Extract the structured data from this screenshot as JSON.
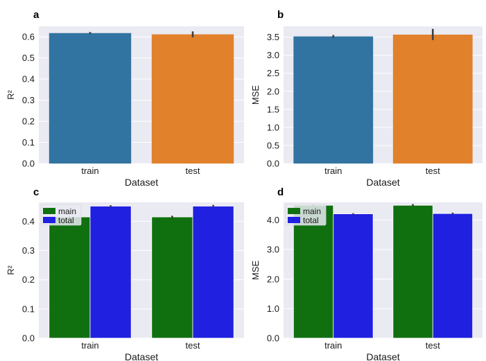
{
  "chart_data": [
    {
      "panel": "a",
      "type": "bar",
      "xlabel": "Dataset",
      "ylabel": "R²",
      "categories": [
        "train",
        "test"
      ],
      "values": [
        0.618,
        0.612
      ],
      "errors": [
        [
          0.613,
          0.623
        ],
        [
          0.598,
          0.626
        ]
      ],
      "bar_colors": [
        "#3274a1",
        "#e1812c"
      ],
      "ylim": [
        0,
        0.65
      ],
      "yticks": [
        0.0,
        0.1,
        0.2,
        0.3,
        0.4,
        0.5,
        0.6
      ],
      "ytick_labels": [
        "0.0",
        "0.1",
        "0.2",
        "0.3",
        "0.4",
        "0.5",
        "0.6"
      ],
      "grid": true
    },
    {
      "panel": "b",
      "type": "bar",
      "xlabel": "Dataset",
      "ylabel": "MSE",
      "categories": [
        "train",
        "test"
      ],
      "values": [
        3.52,
        3.57
      ],
      "errors": [
        [
          3.48,
          3.56
        ],
        [
          3.42,
          3.73
        ]
      ],
      "bar_colors": [
        "#3274a1",
        "#e1812c"
      ],
      "ylim": [
        0,
        3.8
      ],
      "yticks": [
        0.0,
        0.5,
        1.0,
        1.5,
        2.0,
        2.5,
        3.0,
        3.5
      ],
      "ytick_labels": [
        "0.0",
        "0.5",
        "1.0",
        "1.5",
        "2.0",
        "2.5",
        "3.0",
        "3.5"
      ],
      "grid": true
    },
    {
      "panel": "c",
      "type": "bar",
      "xlabel": "Dataset",
      "ylabel": "R²",
      "categories": [
        "train",
        "test"
      ],
      "series": [
        {
          "name": "main",
          "color": "#107010",
          "values": [
            0.415,
            0.415
          ],
          "errors": [
            [
              0.413,
              0.417
            ],
            [
              0.411,
              0.419
            ]
          ]
        },
        {
          "name": "total",
          "color": "#2020e0",
          "values": [
            0.452,
            0.452
          ],
          "errors": [
            [
              0.449,
              0.455
            ],
            [
              0.449,
              0.456
            ]
          ]
        }
      ],
      "ylim": [
        0,
        0.465
      ],
      "yticks": [
        0.0,
        0.1,
        0.2,
        0.3,
        0.4
      ],
      "ytick_labels": [
        "0.0",
        "0.1",
        "0.2",
        "0.3",
        "0.4"
      ],
      "legend": "top-left",
      "grid": true
    },
    {
      "panel": "d",
      "type": "bar",
      "xlabel": "Dataset",
      "ylabel": "MSE",
      "categories": [
        "train",
        "test"
      ],
      "series": [
        {
          "name": "main",
          "color": "#107010",
          "values": [
            4.5,
            4.5
          ],
          "errors": [
            [
              4.48,
              4.53
            ],
            [
              4.47,
              4.54
            ]
          ]
        },
        {
          "name": "total",
          "color": "#2020e0",
          "values": [
            4.21,
            4.22
          ],
          "errors": [
            [
              4.19,
              4.23
            ],
            [
              4.19,
              4.25
            ]
          ]
        }
      ],
      "ylim": [
        0,
        4.6
      ],
      "yticks": [
        0.0,
        1.0,
        2.0,
        3.0,
        4.0
      ],
      "ytick_labels": [
        "0.0",
        "1.0",
        "2.0",
        "3.0",
        "4.0"
      ],
      "legend": "top-left",
      "grid": true
    }
  ],
  "style": {
    "axes_facecolor": "#eaeaf2",
    "grid_color": "#ffffff",
    "errorbar_color": "#3f3f3f"
  }
}
